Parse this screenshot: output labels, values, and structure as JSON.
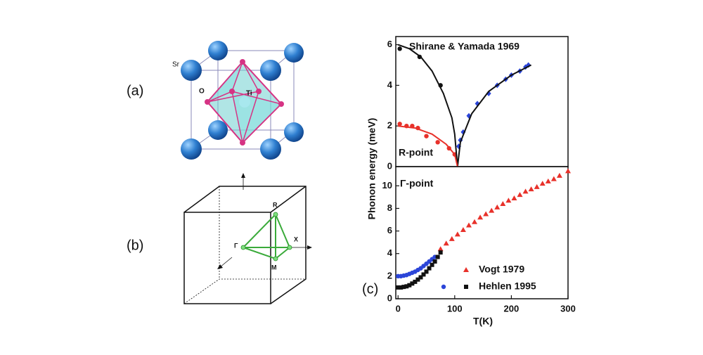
{
  "panels": [
    "(a)",
    "(b)",
    "(c)"
  ],
  "crystal_labels": [
    "Sr",
    "O",
    "Ti"
  ],
  "bz_labels": [
    "R",
    "Γ",
    "X",
    "M"
  ],
  "chart_data": [
    {
      "type": "scatter",
      "title": "Shirane & Yamada 1969",
      "annotation": "R-point",
      "ylabel": "Phonon energy (meV)",
      "xlim": [
        -4,
        300
      ],
      "ylim": [
        0,
        6.4
      ],
      "yticks": [
        0,
        2,
        4,
        6
      ],
      "series": [
        {
          "color": "#111111",
          "marker": "circle",
          "x": [
            3,
            38,
            75
          ],
          "values": [
            5.8,
            5.4,
            4.0
          ]
        },
        {
          "color": "#e8312a",
          "marker": "circle",
          "x": [
            3,
            15,
            25,
            35,
            50,
            70,
            90,
            100
          ],
          "values": [
            2.1,
            2.0,
            2.0,
            1.9,
            1.5,
            1.2,
            0.9,
            0.6
          ]
        },
        {
          "color": "#2b45d8",
          "marker": "diamond",
          "x": [
            107,
            110,
            115,
            125,
            140,
            160,
            175,
            190,
            200,
            215,
            225,
            230
          ],
          "values": [
            1.0,
            1.3,
            1.7,
            2.5,
            3.1,
            3.6,
            4.0,
            4.3,
            4.5,
            4.7,
            4.9,
            5.0
          ]
        },
        {
          "color": "#111111",
          "marker": "line",
          "x": [
            0,
            20,
            40,
            60,
            80,
            95,
            100,
            105
          ],
          "values": [
            6.0,
            5.8,
            5.4,
            4.7,
            3.6,
            2.4,
            1.6,
            0
          ]
        },
        {
          "color": "#111111",
          "marker": "line",
          "x": [
            105,
            110,
            130,
            160,
            200,
            235
          ],
          "values": [
            0,
            1.2,
            2.6,
            3.7,
            4.5,
            5.0
          ]
        },
        {
          "color": "#e8312a",
          "marker": "line",
          "x": [
            0,
            30,
            60,
            85,
            100,
            105
          ],
          "values": [
            2.0,
            1.9,
            1.6,
            1.1,
            0.6,
            0
          ]
        }
      ]
    },
    {
      "type": "scatter",
      "annotation": "Γ-point",
      "xlabel": "T(K)",
      "xlim": [
        -4,
        300
      ],
      "xticks": [
        0,
        100,
        200,
        300
      ],
      "ylim": [
        0,
        11.7
      ],
      "yticks": [
        0,
        2,
        4,
        6,
        8,
        10
      ],
      "series": [
        {
          "name": "Vogt 1979",
          "color": "#e8312a",
          "marker": "triangle",
          "x": [
            75,
            85,
            95,
            105,
            115,
            125,
            135,
            145,
            155,
            165,
            175,
            185,
            195,
            205,
            215,
            225,
            235,
            245,
            255,
            265,
            275,
            285,
            300
          ],
          "values": [
            4.4,
            4.9,
            5.3,
            5.7,
            6.1,
            6.5,
            6.8,
            7.2,
            7.5,
            7.8,
            8.1,
            8.4,
            8.7,
            8.9,
            9.2,
            9.5,
            9.7,
            9.9,
            10.2,
            10.4,
            10.6,
            10.9,
            11.3
          ]
        },
        {
          "color": "#2b45d8",
          "marker": "circle",
          "x": [
            0,
            5,
            10,
            15,
            20,
            25,
            30,
            35,
            40,
            45,
            50,
            55,
            60,
            65
          ],
          "values": [
            2.0,
            2.0,
            2.05,
            2.1,
            2.2,
            2.3,
            2.4,
            2.55,
            2.7,
            2.9,
            3.1,
            3.3,
            3.5,
            3.7
          ]
        },
        {
          "name": "Hehlen 1995",
          "color": "#111111",
          "marker": "square",
          "x": [
            0,
            5,
            10,
            15,
            20,
            25,
            30,
            35,
            40,
            45,
            50,
            55,
            60,
            65,
            70,
            75
          ],
          "values": [
            1.0,
            1.0,
            1.05,
            1.1,
            1.2,
            1.35,
            1.5,
            1.7,
            1.9,
            2.15,
            2.4,
            2.7,
            3.0,
            3.3,
            3.7,
            4.1
          ]
        }
      ]
    }
  ]
}
